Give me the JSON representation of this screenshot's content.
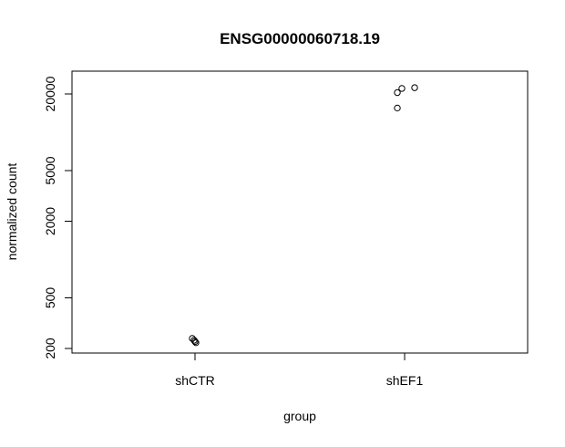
{
  "chart_data": {
    "type": "scatter",
    "title": "ENSG00000060718.19",
    "xlabel": "group",
    "ylabel": "normalized count",
    "categories": [
      "shCTR",
      "shEF1"
    ],
    "y_scale": "log",
    "yticks": [
      200,
      500,
      2000,
      5000,
      20000
    ],
    "ylim": [
      180,
      26000
    ],
    "grid": false,
    "legend": "none",
    "points": [
      {
        "group": "shCTR",
        "y": 240
      },
      {
        "group": "shCTR",
        "y": 232
      },
      {
        "group": "shCTR",
        "y": 227
      },
      {
        "group": "shCTR",
        "y": 222
      },
      {
        "group": "shEF1",
        "y": 20500
      },
      {
        "group": "shEF1",
        "y": 22100
      },
      {
        "group": "shEF1",
        "y": 22400
      },
      {
        "group": "shEF1",
        "y": 15500
      }
    ]
  }
}
